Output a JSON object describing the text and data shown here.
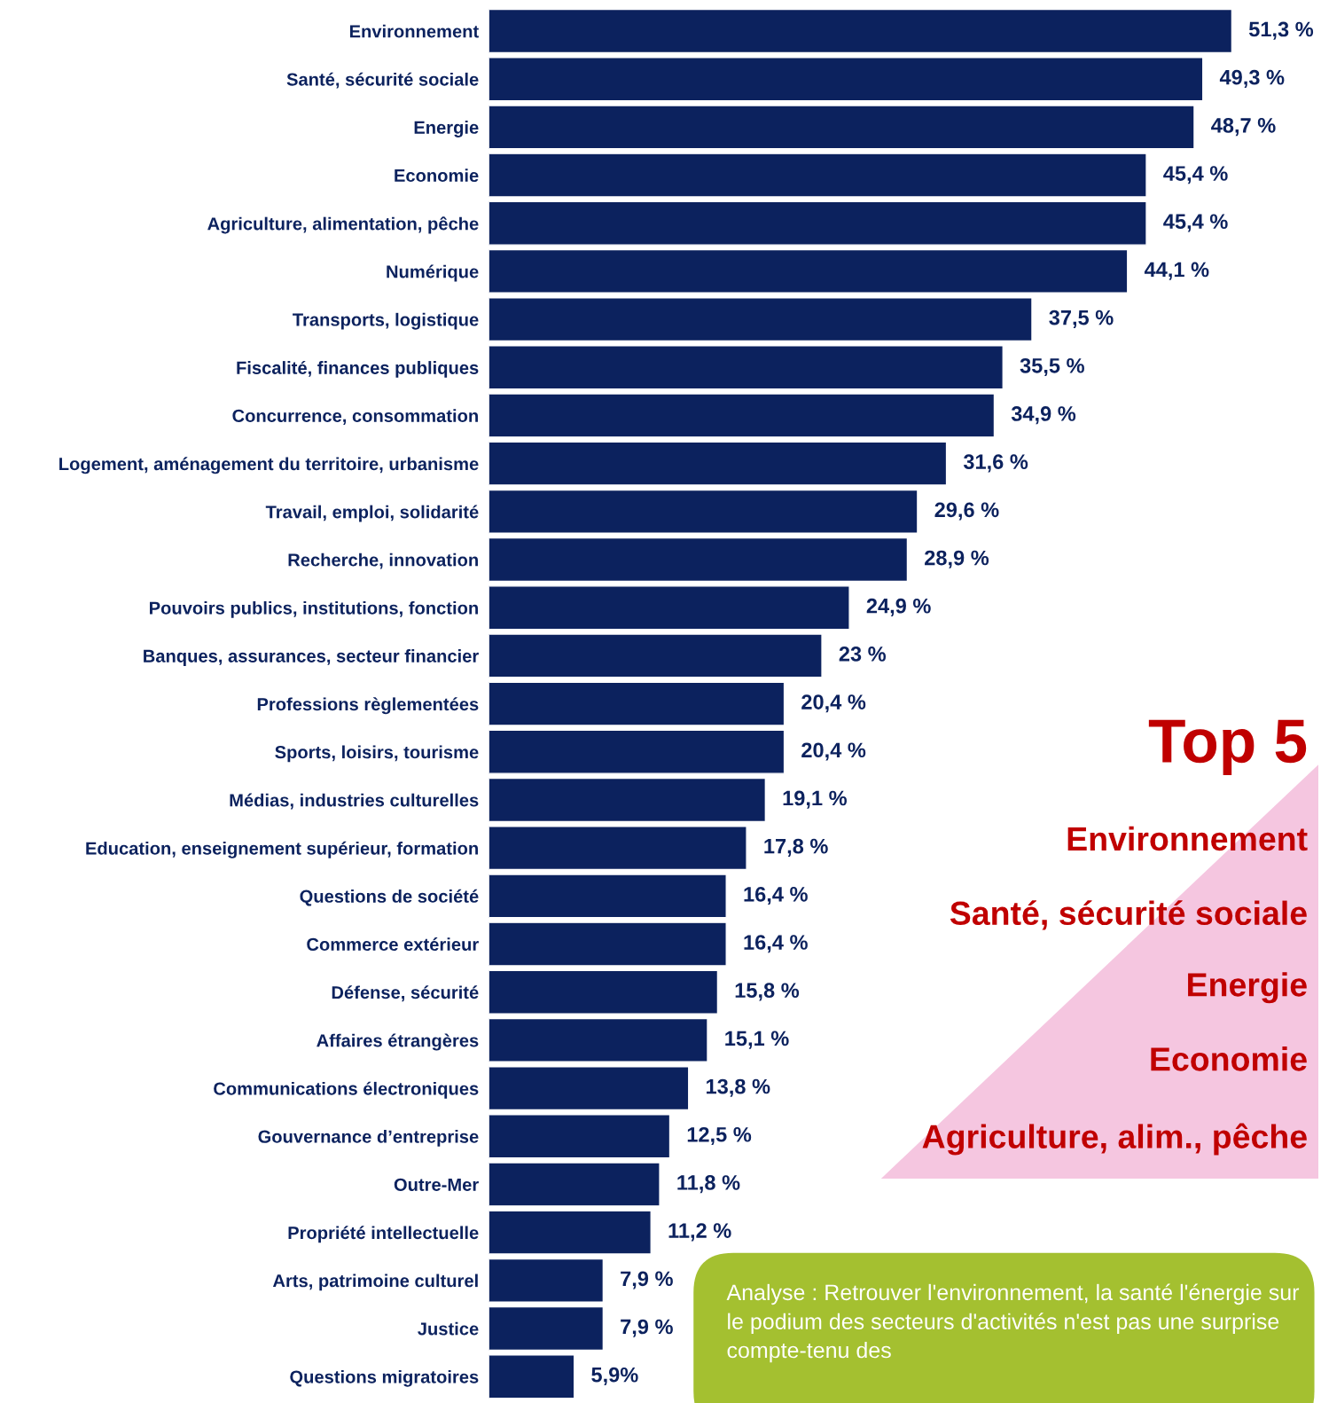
{
  "chart_data": {
    "type": "bar",
    "orientation": "horizontal",
    "color": "#0c225e",
    "categories": [
      "Environnement",
      "Santé, sécurité sociale",
      "Energie",
      "Economie",
      "Agriculture, alimentation, pêche",
      "Numérique",
      "Transports, logistique",
      "Fiscalité, finances publiques",
      "Concurrence, consommation",
      "Logement, aménagement du territoire, urbanisme",
      "Travail, emploi, solidarité",
      "Recherche, innovation",
      "Pouvoirs publics, institutions, fonction",
      "Banques, assurances, secteur financier",
      "Professions règlementées",
      "Sports, loisirs, tourisme",
      "Médias, industries culturelles",
      "Education, enseignement supérieur, formation",
      "Questions de société",
      "Commerce extérieur",
      "Défense, sécurité",
      "Affaires étrangères",
      "Communications électroniques",
      "Gouvernance d’entreprise",
      "Outre-Mer",
      "Propriété intellectuelle",
      "Arts, patrimoine culturel",
      "Justice",
      "Questions migratoires"
    ],
    "values": [
      51.3,
      49.3,
      48.7,
      45.4,
      45.4,
      44.1,
      37.5,
      35.5,
      34.9,
      31.6,
      29.6,
      28.9,
      24.9,
      23,
      20.4,
      20.4,
      19.1,
      17.8,
      16.4,
      16.4,
      15.8,
      15.1,
      13.8,
      12.5,
      11.8,
      11.2,
      7.9,
      7.9,
      5.9
    ],
    "value_labels": [
      "51,3 %",
      "49,3 %",
      "48,7 %",
      "45,4 %",
      "45,4 %",
      "44,1 %",
      "37,5 %",
      "35,5 %",
      "34,9 %",
      "31,6 %",
      "29,6 %",
      "28,9 %",
      "24,9 %",
      "23 %",
      "20,4 %",
      "20,4 %",
      "19,1 %",
      "17,8 %",
      "16,4 %",
      "16,4 %",
      "15,8 %",
      "15,1 %",
      "13,8 %",
      "12,5 %",
      "11,8 %",
      "11,2 %",
      "7,9 %",
      "7,9 %",
      "5,9%"
    ],
    "annotations": [
      "Top 5",
      "Environnement",
      "Santé, sécurité sociale",
      "Energie",
      "Economie",
      "Agriculture, alim., pêche",
      "Analyse : Retrouver l'environnement, la santé l'énergie sur le podium des secteurs d'activités n'est pas une surprise compte-tenu des"
    ]
  }
}
